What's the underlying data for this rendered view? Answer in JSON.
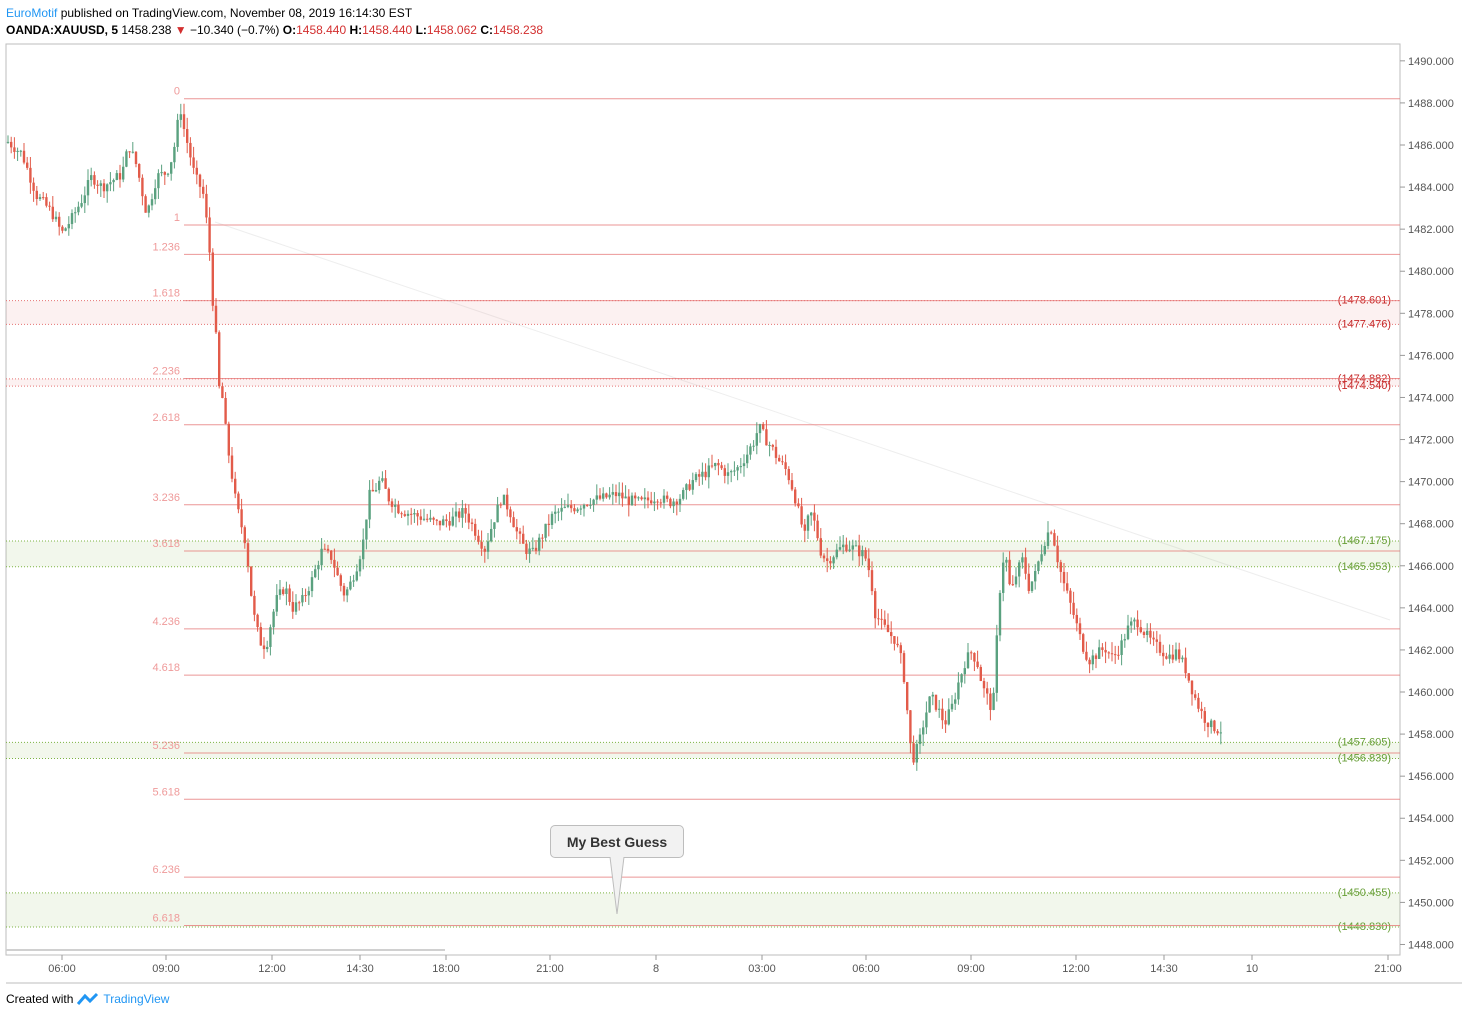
{
  "header": {
    "author": "EuroMotif",
    "published_text": " published on TradingView.com, November 08, 2019 16:14:30 EST",
    "symbol": "OANDA:XAUUSD, 5",
    "last": "1458.238",
    "change": "−10.340 (−0.7%)",
    "open_label": "O:",
    "open": "1458.440",
    "high_label": "H:",
    "high": "1458.440",
    "low_label": "L:",
    "low": "1458.062",
    "close_label": "C:",
    "close": "1458.238"
  },
  "footer": {
    "created_with": "Created with",
    "brand": "TradingView"
  },
  "callout": {
    "text": "My Best Guess"
  },
  "colors": {
    "up": "#5aa17f",
    "down": "#e25b4a",
    "fib": "#e57373",
    "fib_label": "#ef9a9a",
    "green_zone": "#7cb342"
  },
  "chart_data": {
    "type": "candlestick",
    "symbol": "OANDA:XAUUSD",
    "timeframe": "5",
    "ylim": [
      1447.5,
      1490.8
    ],
    "y_ticks": [
      "1490.000",
      "1488.000",
      "1486.000",
      "1484.000",
      "1482.000",
      "1480.000",
      "1478.000",
      "1476.000",
      "1474.000",
      "1472.000",
      "1470.000",
      "1468.000",
      "1466.000",
      "1464.000",
      "1462.000",
      "1460.000",
      "1458.000",
      "1456.000",
      "1454.000",
      "1452.000",
      "1450.000",
      "1448.000"
    ],
    "x_ticks": [
      "06:00",
      "09:00",
      "12:00",
      "14:30",
      "18:00",
      "21:00",
      "8",
      "03:00",
      "06:00",
      "09:00",
      "12:00",
      "14:30",
      "10",
      "21:00"
    ],
    "fib_levels": [
      {
        "label": "0",
        "price": 1488.2
      },
      {
        "label": "1",
        "price": 1482.2
      },
      {
        "label": "1.236",
        "price": 1480.8
      },
      {
        "label": "1.618",
        "price": 1478.6
      },
      {
        "label": "2.236",
        "price": 1474.9
      },
      {
        "label": "2.618",
        "price": 1472.7
      },
      {
        "label": "3.236",
        "price": 1468.9
      },
      {
        "label": "3.618",
        "price": 1466.7
      },
      {
        "label": "4.236",
        "price": 1463.0
      },
      {
        "label": "4.618",
        "price": 1460.8
      },
      {
        "label": "5.236",
        "price": 1457.1
      },
      {
        "label": "5.618",
        "price": 1454.9
      },
      {
        "label": "6.236",
        "price": 1451.2
      },
      {
        "label": "6.618",
        "price": 1448.9
      }
    ],
    "zones": [
      {
        "type": "resistance",
        "top": 1478.601,
        "bottom": 1477.476,
        "top_label": "(1478.601)",
        "bottom_label": "(1477.476)"
      },
      {
        "type": "resistance",
        "top": 1474.882,
        "bottom": 1474.54,
        "top_label": "(1474.882)",
        "bottom_label": "(1474.540)"
      },
      {
        "type": "support",
        "top": 1467.175,
        "bottom": 1465.953,
        "top_label": "(1467.175)",
        "bottom_label": "(1465.953)"
      },
      {
        "type": "support",
        "top": 1457.605,
        "bottom": 1456.839,
        "top_label": "(1457.605)",
        "bottom_label": "(1456.839)"
      },
      {
        "type": "support",
        "top": 1450.455,
        "bottom": 1448.83,
        "top_label": "(1450.455)",
        "bottom_label": "(1448.830)"
      }
    ],
    "price_path": [
      [
        0,
        1485.8
      ],
      [
        10,
        1486.2
      ],
      [
        25,
        1485.6
      ],
      [
        40,
        1483.6
      ],
      [
        55,
        1482.8
      ],
      [
        65,
        1481.8
      ],
      [
        75,
        1482.5
      ],
      [
        85,
        1483.4
      ],
      [
        95,
        1484.5
      ],
      [
        105,
        1484.0
      ],
      [
        115,
        1484.3
      ],
      [
        125,
        1484.6
      ],
      [
        132,
        1486.0
      ],
      [
        140,
        1485.0
      ],
      [
        150,
        1482.7
      ],
      [
        160,
        1484.5
      ],
      [
        170,
        1484.7
      ],
      [
        176,
        1485.5
      ],
      [
        180,
        1486.6
      ],
      [
        183,
        1488.0
      ],
      [
        186,
        1487.0
      ],
      [
        192,
        1485.8
      ],
      [
        198,
        1484.5
      ],
      [
        206,
        1483.8
      ],
      [
        212,
        1481.5
      ],
      [
        216,
        1478.6
      ],
      [
        219,
        1477.0
      ],
      [
        222,
        1474.5
      ],
      [
        226,
        1473.9
      ],
      [
        230,
        1471.9
      ],
      [
        234,
        1470.7
      ],
      [
        238,
        1469.3
      ],
      [
        243,
        1468.2
      ],
      [
        248,
        1467.3
      ],
      [
        252,
        1465.8
      ],
      [
        256,
        1463.9
      ],
      [
        260,
        1463.0
      ],
      [
        265,
        1462.2
      ],
      [
        270,
        1462.3
      ],
      [
        275,
        1463.5
      ],
      [
        280,
        1464.4
      ],
      [
        288,
        1465.0
      ],
      [
        296,
        1464.0
      ],
      [
        305,
        1464.3
      ],
      [
        315,
        1465.3
      ],
      [
        325,
        1466.7
      ],
      [
        335,
        1466.4
      ],
      [
        342,
        1465.3
      ],
      [
        348,
        1464.6
      ],
      [
        354,
        1465.2
      ],
      [
        360,
        1466.0
      ],
      [
        366,
        1467.0
      ],
      [
        372,
        1469.3
      ],
      [
        378,
        1469.6
      ],
      [
        384,
        1470.1
      ],
      [
        392,
        1469.2
      ],
      [
        402,
        1468.7
      ],
      [
        412,
        1468.5
      ],
      [
        425,
        1468.3
      ],
      [
        440,
        1468.0
      ],
      [
        455,
        1468.2
      ],
      [
        468,
        1468.6
      ],
      [
        480,
        1467.5
      ],
      [
        488,
        1466.8
      ],
      [
        495,
        1467.9
      ],
      [
        505,
        1469.3
      ],
      [
        513,
        1468.6
      ],
      [
        520,
        1467.6
      ],
      [
        528,
        1466.8
      ],
      [
        536,
        1466.6
      ],
      [
        546,
        1467.5
      ],
      [
        556,
        1468.4
      ],
      [
        568,
        1468.7
      ],
      [
        580,
        1468.8
      ],
      [
        592,
        1469.1
      ],
      [
        605,
        1469.2
      ],
      [
        620,
        1469.4
      ],
      [
        632,
        1469.1
      ],
      [
        645,
        1469.0
      ],
      [
        660,
        1469.3
      ],
      [
        672,
        1469.0
      ],
      [
        685,
        1469.3
      ],
      [
        695,
        1470.0
      ],
      [
        708,
        1470.4
      ],
      [
        720,
        1470.8
      ],
      [
        732,
        1470.3
      ],
      [
        742,
        1470.7
      ],
      [
        750,
        1471.3
      ],
      [
        757,
        1471.9
      ],
      [
        762,
        1472.6
      ],
      [
        768,
        1472.1
      ],
      [
        775,
        1471.6
      ],
      [
        782,
        1471.0
      ],
      [
        790,
        1470.5
      ],
      [
        797,
        1469.5
      ],
      [
        803,
        1468.3
      ],
      [
        808,
        1467.4
      ],
      [
        813,
        1468.6
      ],
      [
        818,
        1468.0
      ],
      [
        824,
        1466.7
      ],
      [
        830,
        1466.2
      ],
      [
        838,
        1466.6
      ],
      [
        848,
        1467.0
      ],
      [
        858,
        1466.8
      ],
      [
        868,
        1466.5
      ],
      [
        874,
        1465.5
      ],
      [
        878,
        1463.8
      ],
      [
        885,
        1463.2
      ],
      [
        892,
        1462.8
      ],
      [
        898,
        1462.5
      ],
      [
        904,
        1461.6
      ],
      [
        909,
        1460.2
      ],
      [
        912,
        1457.9
      ],
      [
        916,
        1456.8
      ],
      [
        922,
        1457.5
      ],
      [
        928,
        1458.8
      ],
      [
        934,
        1459.8
      ],
      [
        940,
        1459.3
      ],
      [
        948,
        1458.5
      ],
      [
        956,
        1459.4
      ],
      [
        962,
        1460.5
      ],
      [
        968,
        1461.4
      ],
      [
        974,
        1461.9
      ],
      [
        980,
        1461.5
      ],
      [
        986,
        1460.2
      ],
      [
        992,
        1459.6
      ],
      [
        996,
        1459.0
      ],
      [
        1000,
        1462.5
      ],
      [
        1004,
        1465.5
      ],
      [
        1008,
        1466.8
      ],
      [
        1014,
        1464.6
      ],
      [
        1020,
        1465.7
      ],
      [
        1026,
        1466.3
      ],
      [
        1032,
        1465.0
      ],
      [
        1038,
        1465.5
      ],
      [
        1044,
        1466.6
      ],
      [
        1050,
        1467.5
      ],
      [
        1055,
        1467.8
      ],
      [
        1060,
        1466.5
      ],
      [
        1066,
        1465.3
      ],
      [
        1072,
        1464.4
      ],
      [
        1078,
        1463.5
      ],
      [
        1085,
        1462.3
      ],
      [
        1092,
        1461.5
      ],
      [
        1100,
        1461.8
      ],
      [
        1108,
        1462.1
      ],
      [
        1116,
        1461.6
      ],
      [
        1124,
        1462.2
      ],
      [
        1132,
        1463.1
      ],
      [
        1140,
        1463.4
      ],
      [
        1148,
        1462.8
      ],
      [
        1156,
        1462.3
      ],
      [
        1164,
        1462.0
      ],
      [
        1172,
        1461.7
      ],
      [
        1180,
        1461.9
      ],
      [
        1188,
        1461.2
      ],
      [
        1194,
        1460.3
      ],
      [
        1200,
        1459.5
      ],
      [
        1207,
        1458.8
      ],
      [
        1214,
        1458.4
      ],
      [
        1222,
        1458.2
      ]
    ]
  }
}
